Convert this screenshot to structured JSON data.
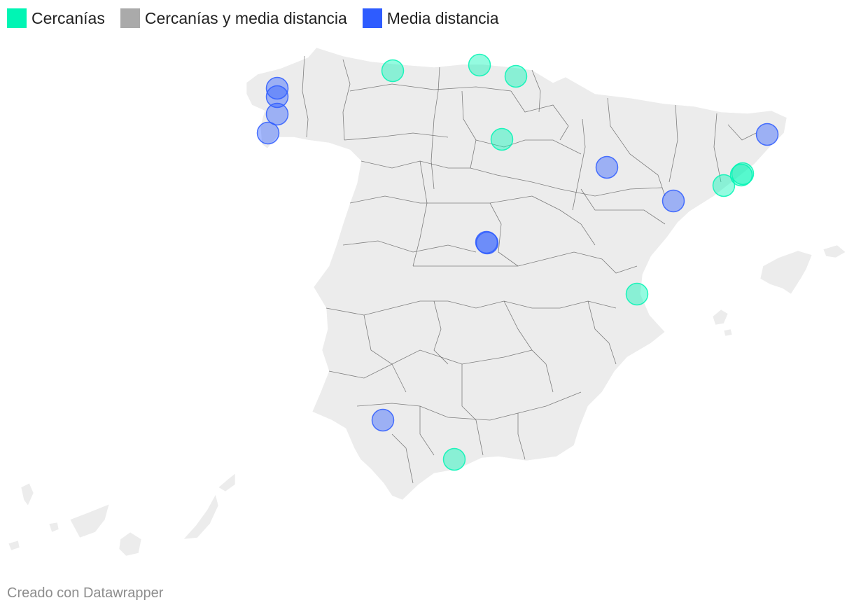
{
  "legend": {
    "items": [
      {
        "label": "Cercanías",
        "color": "#00f5b4"
      },
      {
        "label": "Cercanías y media distancia",
        "color": "#aaaaaa"
      },
      {
        "label": "Media distancia",
        "color": "#2e5cff"
      }
    ]
  },
  "map": {
    "land_color": "#ececec",
    "border_color": "#5a5a5a",
    "markers": [
      {
        "category": "Cercanías"
      },
      {
        "category": "Cercanías"
      },
      {
        "category": "Cercanías"
      },
      {
        "category": "Cercanías"
      },
      {
        "category": "Cercanías"
      },
      {
        "category": "Cercanías"
      },
      {
        "category": "Cercanías"
      },
      {
        "category": "Cercanías"
      },
      {
        "category": "Cercanías"
      },
      {
        "category": "Media distancia"
      },
      {
        "category": "Media distancia"
      },
      {
        "category": "Media distancia"
      },
      {
        "category": "Media distancia"
      },
      {
        "category": "Media distancia"
      },
      {
        "category": "Media distancia"
      },
      {
        "category": "Media distancia"
      },
      {
        "category": "Media distancia"
      },
      {
        "category": "Media distancia"
      },
      {
        "category": "Media distancia"
      }
    ]
  },
  "footer": {
    "attribution": "Creado con Datawrapper"
  }
}
